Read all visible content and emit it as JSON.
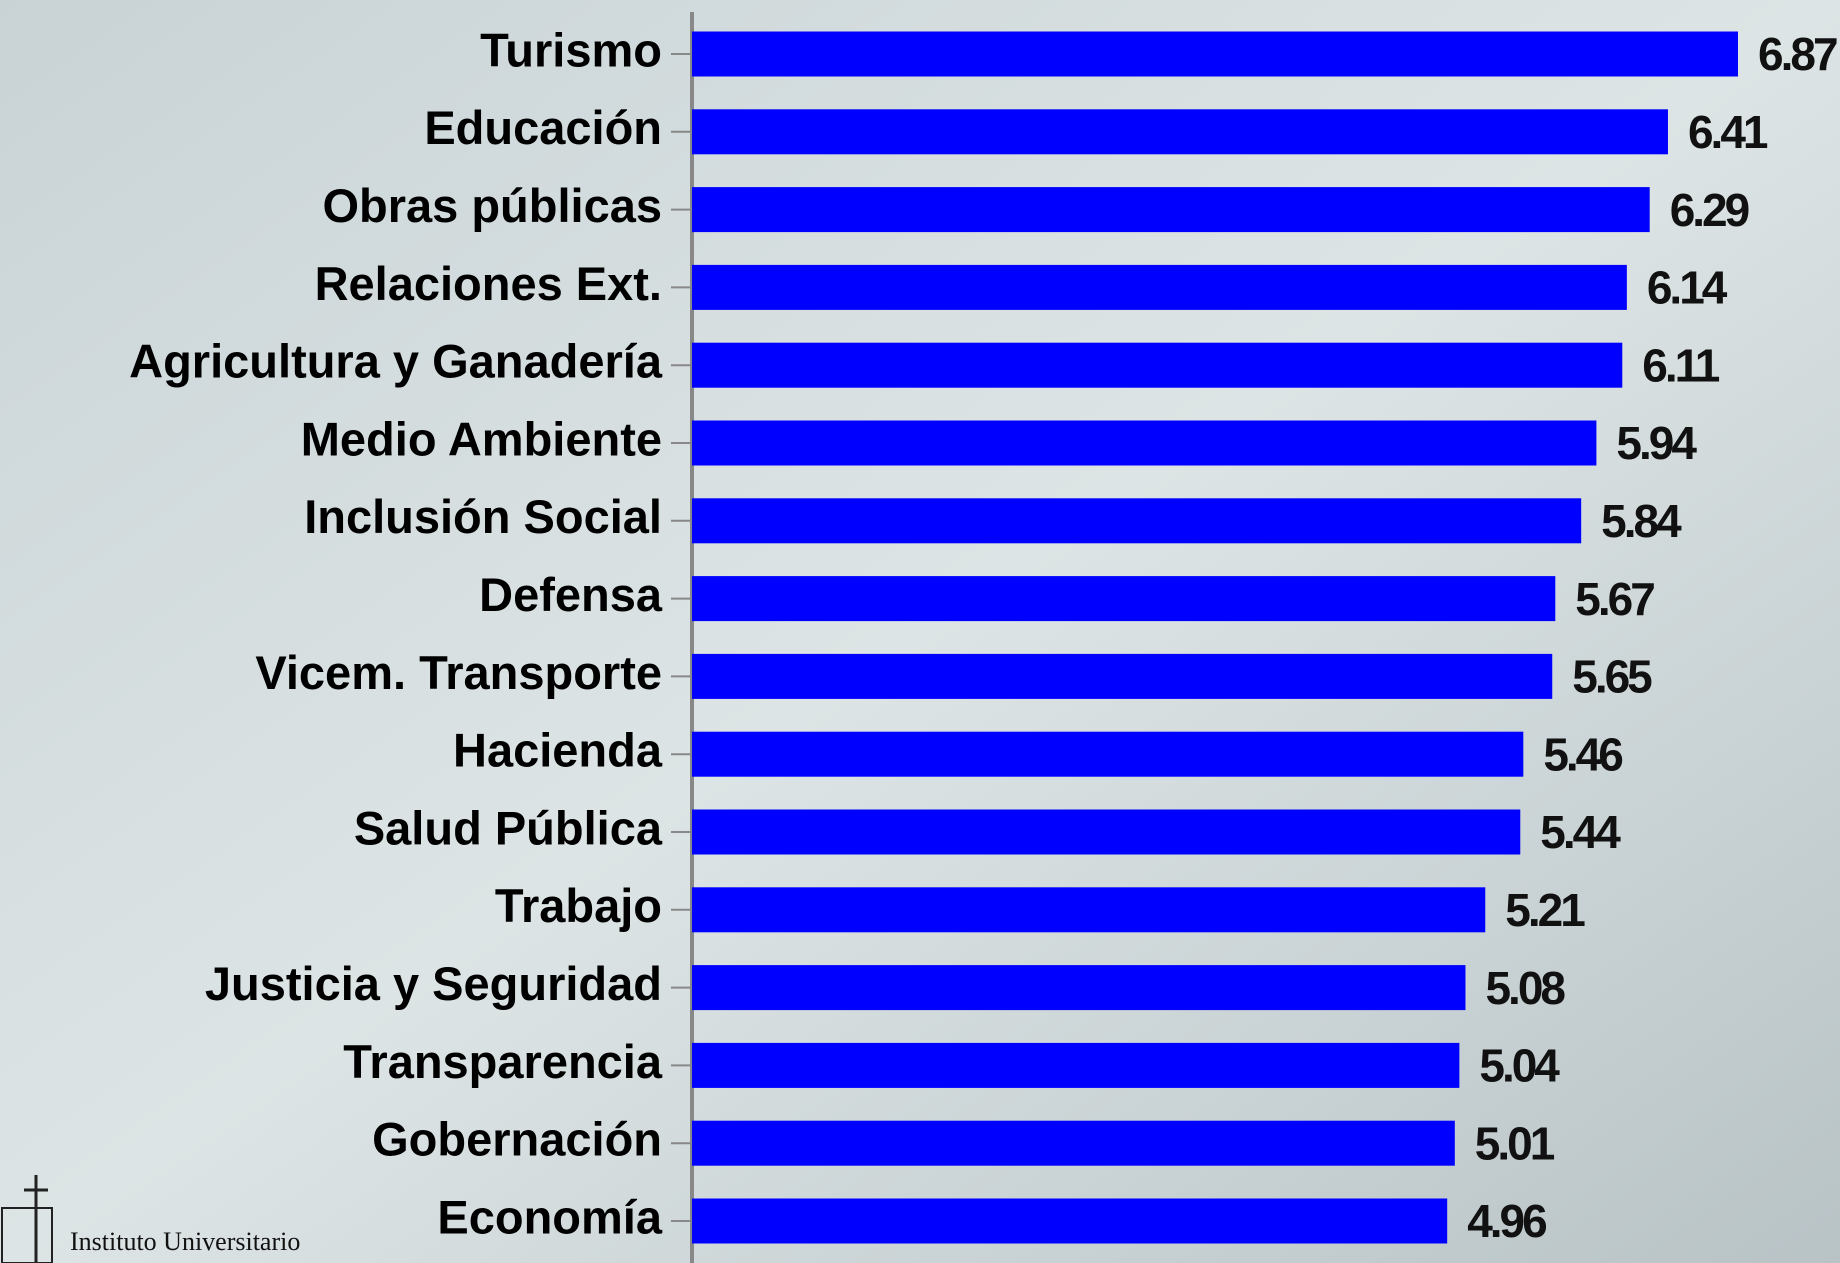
{
  "chart_data": {
    "type": "bar",
    "orientation": "horizontal",
    "categories": [
      "Turismo",
      "Educación",
      "Obras públicas",
      "Relaciones Ext.",
      "Agricultura y Ganadería",
      "Medio Ambiente",
      "Inclusión Social",
      "Defensa",
      "Vicem. Transporte",
      "Hacienda",
      "Salud Pública",
      "Trabajo",
      "Justicia y Seguridad",
      "Transparencia",
      "Gobernación",
      "Economía"
    ],
    "values": [
      6.87,
      6.41,
      6.29,
      6.14,
      6.11,
      5.94,
      5.84,
      5.67,
      5.65,
      5.46,
      5.44,
      5.21,
      5.08,
      5.04,
      5.01,
      4.96
    ],
    "color": "#0000ff"
  },
  "logo_text": "Instituto Universitario"
}
